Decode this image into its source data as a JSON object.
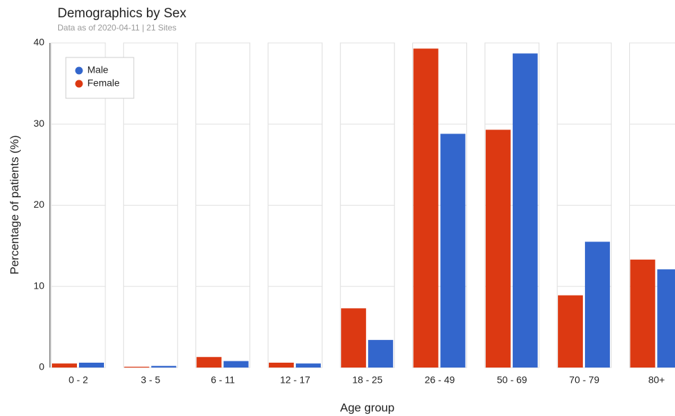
{
  "chart_data": {
    "type": "bar",
    "title": "Demographics by Sex",
    "subtitle": "Data as of 2020-04-11 | 21 Sites",
    "x_label": "Age group",
    "y_label": "Percentage of patients (%)",
    "categories": [
      "0 - 2",
      "3 - 5",
      "6 - 11",
      "12 - 17",
      "18 - 25",
      "26 - 49",
      "50 - 69",
      "70 - 79",
      "80+"
    ],
    "series": [
      {
        "name": "Female",
        "color": "#dc3912",
        "values": [
          0.5,
          0.1,
          1.3,
          0.6,
          7.3,
          39.3,
          29.3,
          8.9,
          13.3
        ]
      },
      {
        "name": "Male",
        "color": "#3366cc",
        "values": [
          0.6,
          0.2,
          0.8,
          0.5,
          3.4,
          28.8,
          38.7,
          15.5,
          12.1
        ]
      }
    ],
    "legend_order": [
      "Male",
      "Female"
    ],
    "ylim": [
      0,
      40
    ],
    "yticks": [
      0,
      10,
      20,
      30,
      40
    ],
    "grid": true
  }
}
